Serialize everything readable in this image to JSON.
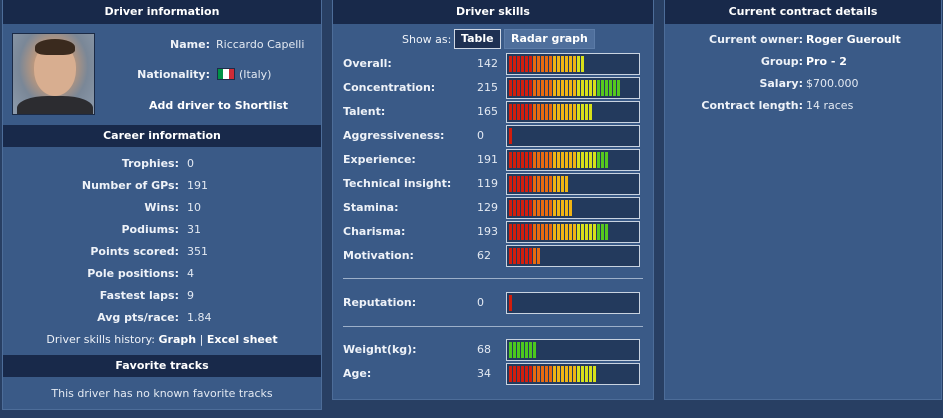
{
  "driver_info": {
    "header": "Driver information",
    "name_label": "Name:",
    "name": "Riccardo Capelli",
    "nationality_label": "Nationality:",
    "nationality": "(Italy)",
    "flag_colors": [
      "#009246",
      "#ffffff",
      "#ce2b37"
    ],
    "shortlist_label": "Add driver to Shortlist"
  },
  "career": {
    "header": "Career information",
    "rows": [
      {
        "label": "Trophies:",
        "value": "0"
      },
      {
        "label": "Number of GPs:",
        "value": "191"
      },
      {
        "label": "Wins:",
        "value": "10"
      },
      {
        "label": "Podiums:",
        "value": "31"
      },
      {
        "label": "Points scored:",
        "value": "351"
      },
      {
        "label": "Pole positions:",
        "value": "4"
      },
      {
        "label": "Fastest laps:",
        "value": "9"
      },
      {
        "label": "Avg pts/race:",
        "value": "1.84"
      }
    ],
    "history_label": "Driver skills history:",
    "graph_link": "Graph",
    "separator": "|",
    "excel_link": "Excel sheet"
  },
  "favorite_tracks": {
    "header": "Favorite tracks",
    "empty_text": "This driver has no known favorite tracks"
  },
  "skills": {
    "header": "Driver skills",
    "show_as_label": "Show as:",
    "table_button": "Table",
    "radar_button": "Radar graph",
    "rows": [
      {
        "label": "Overall:",
        "value": "142",
        "segments": 19
      },
      {
        "label": "Concentration:",
        "value": "215",
        "segments": 28
      },
      {
        "label": "Talent:",
        "value": "165",
        "segments": 21
      },
      {
        "label": "Aggressiveness:",
        "value": "0",
        "segments": 1
      },
      {
        "label": "Experience:",
        "value": "191",
        "segments": 25
      },
      {
        "label": "Technical insight:",
        "value": "119",
        "segments": 15
      },
      {
        "label": "Stamina:",
        "value": "129",
        "segments": 16
      },
      {
        "label": "Charisma:",
        "value": "193",
        "segments": 25
      },
      {
        "label": "Motivation:",
        "value": "62",
        "segments": 8
      }
    ],
    "reputation": {
      "label": "Reputation:",
      "value": "0",
      "segments": 1
    },
    "physical": [
      {
        "label": "Weight(kg):",
        "value": "68",
        "segments": 7,
        "color": "green"
      },
      {
        "label": "Age:",
        "value": "34",
        "segments": 22,
        "color": "gradient"
      }
    ]
  },
  "contract": {
    "header": "Current contract details",
    "rows": [
      {
        "label": "Current owner:",
        "value": "Roger Gueroult",
        "bold": true
      },
      {
        "label": "Group:",
        "value": "Pro - 2",
        "bold": true
      },
      {
        "label": "Salary:",
        "value": "$700.000",
        "bold": false
      },
      {
        "label": "Contract length:",
        "value": "14 races",
        "bold": false
      }
    ]
  }
}
